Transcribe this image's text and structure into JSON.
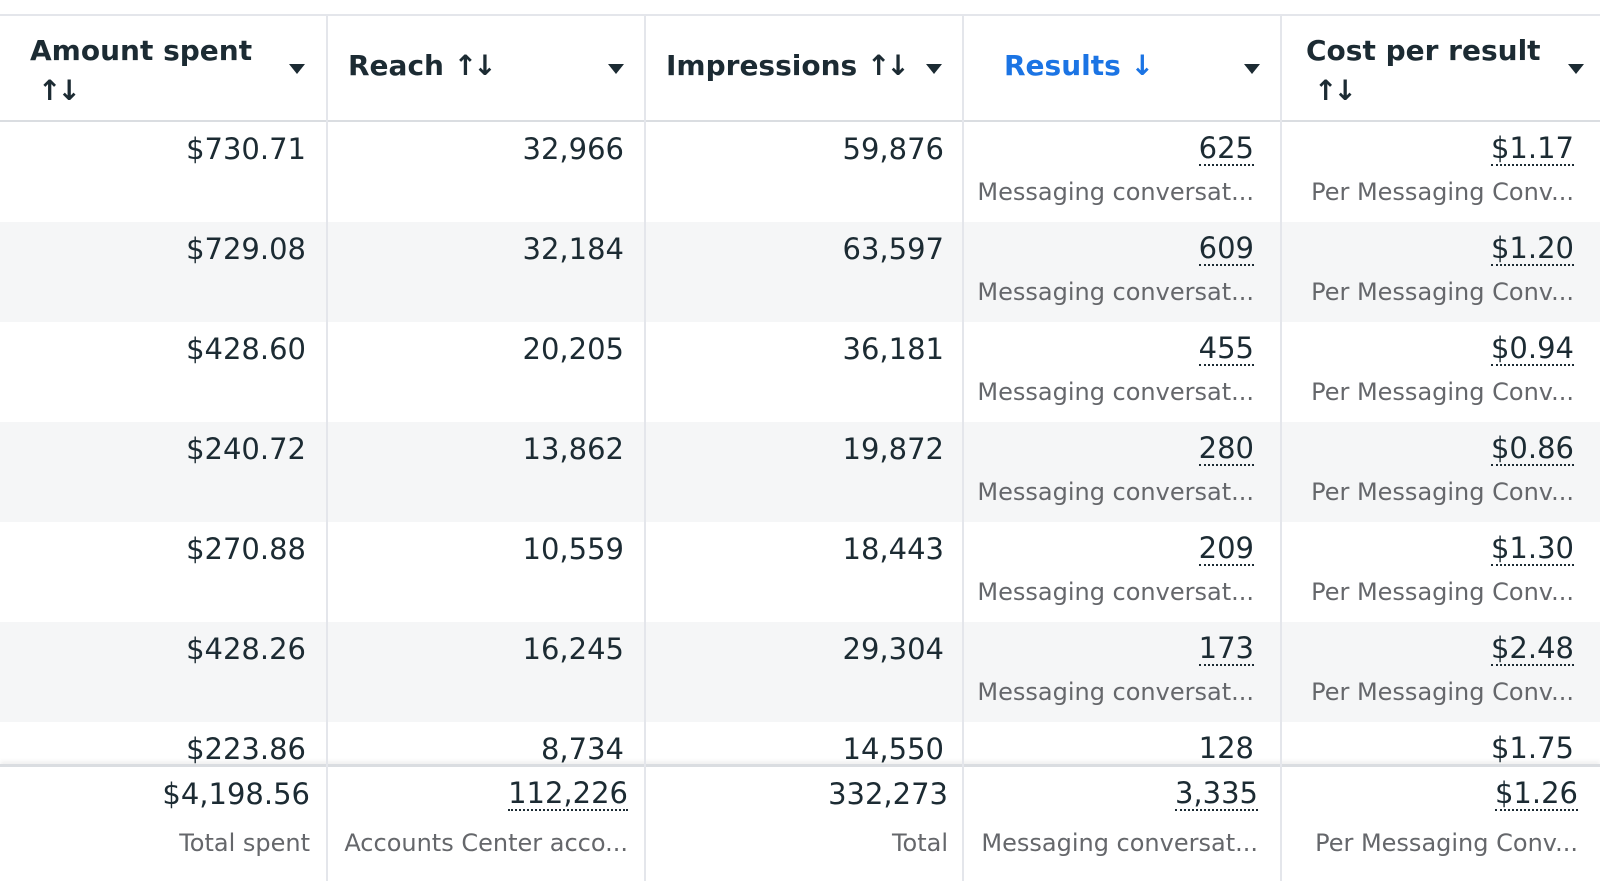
{
  "columns": [
    {
      "label": "Amount spent",
      "sort_icon": "↑↓",
      "active": false
    },
    {
      "label": "Reach",
      "sort_icon": "↑↓",
      "active": false
    },
    {
      "label": "Impressions",
      "sort_icon": "↑↓",
      "active": false
    },
    {
      "label": "Results",
      "sort_icon": "↓",
      "active": true
    },
    {
      "label": "Cost per result",
      "sort_icon": "↑↓",
      "active": false
    }
  ],
  "rows": [
    {
      "amount_spent": "$730.71",
      "reach": "32,966",
      "impressions": "59,876",
      "results": "625",
      "results_sub": "Messaging conversat...",
      "cost": "$1.17",
      "cost_sub": "Per Messaging Conv..."
    },
    {
      "amount_spent": "$729.08",
      "reach": "32,184",
      "impressions": "63,597",
      "results": "609",
      "results_sub": "Messaging conversat...",
      "cost": "$1.20",
      "cost_sub": "Per Messaging Conv..."
    },
    {
      "amount_spent": "$428.60",
      "reach": "20,205",
      "impressions": "36,181",
      "results": "455",
      "results_sub": "Messaging conversat...",
      "cost": "$0.94",
      "cost_sub": "Per Messaging Conv..."
    },
    {
      "amount_spent": "$240.72",
      "reach": "13,862",
      "impressions": "19,872",
      "results": "280",
      "results_sub": "Messaging conversat...",
      "cost": "$0.86",
      "cost_sub": "Per Messaging Conv..."
    },
    {
      "amount_spent": "$270.88",
      "reach": "10,559",
      "impressions": "18,443",
      "results": "209",
      "results_sub": "Messaging conversat...",
      "cost": "$1.30",
      "cost_sub": "Per Messaging Conv..."
    },
    {
      "amount_spent": "$428.26",
      "reach": "16,245",
      "impressions": "29,304",
      "results": "173",
      "results_sub": "Messaging conversat...",
      "cost": "$2.48",
      "cost_sub": "Per Messaging Conv..."
    },
    {
      "amount_spent": "$223.86",
      "reach": "8,734",
      "impressions": "14,550",
      "results": "128",
      "results_sub": "",
      "cost": "$1.75",
      "cost_sub": ""
    }
  ],
  "totals": {
    "amount_spent": "$4,198.56",
    "amount_spent_sub": "Total spent",
    "reach": "112,226",
    "reach_sub": "Accounts Center acco...",
    "impressions": "332,273",
    "impressions_sub": "Total",
    "results": "3,335",
    "results_sub": "Messaging conversat...",
    "cost": "$1.26",
    "cost_sub": "Per Messaging Conv..."
  },
  "colors": {
    "active_header": "#1b74e4",
    "row_alt": "#f5f6f7",
    "text": "#1c2b33",
    "subtext": "#65676b"
  }
}
